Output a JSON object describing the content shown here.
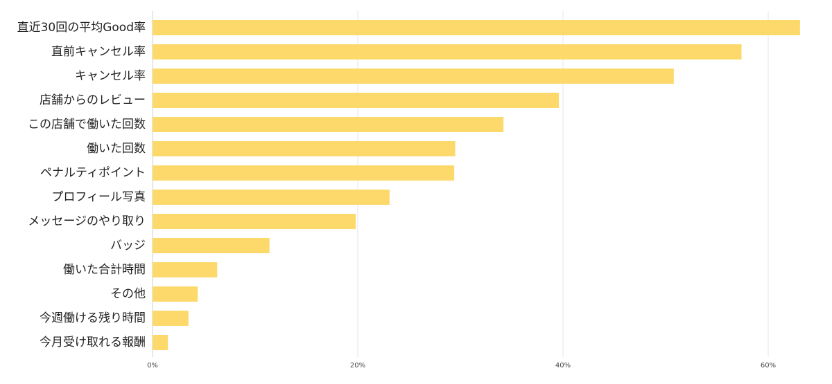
{
  "chart_data": {
    "type": "bar",
    "orientation": "horizontal",
    "title": "",
    "xlabel": "",
    "ylabel": "",
    "categories": [
      "直近30回の平均Good率",
      "直前キャンセル率",
      "キャンセル率",
      "店舗からのレビュー",
      "この店舗で働いた回数",
      "働いた回数",
      "ペナルティポイント",
      "プロフィール写真",
      "メッセージのやり取り",
      "バッジ",
      "働いた合計時間",
      "その他",
      "今週働ける残り時間",
      "今月受け取れる報酬"
    ],
    "values": [
      63.1,
      57.4,
      50.8,
      39.6,
      34.2,
      29.5,
      29.4,
      23.1,
      19.8,
      11.4,
      6.3,
      4.4,
      3.5,
      1.5
    ],
    "xlim": [
      0,
      64
    ],
    "xticks": [
      0,
      20,
      40,
      60
    ],
    "xtick_labels": [
      "0%",
      "20%",
      "40%",
      "60%"
    ],
    "bar_color": "#fcd96a",
    "grid": true
  }
}
